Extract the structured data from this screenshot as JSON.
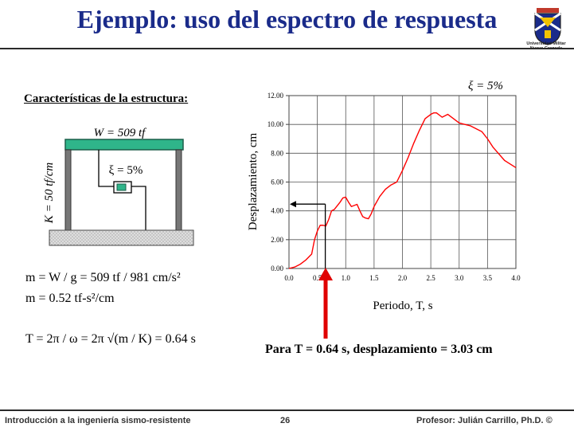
{
  "title": "Ejemplo: uso del espectro de respuesta",
  "logo": {
    "line1": "Universidad Militar",
    "line2": "Nueva Granada"
  },
  "structure": {
    "heading": "Características de la estructura:",
    "weight_label": "W = 509 tf",
    "damping_label": "ξ = 5%",
    "stiffness_label": "K = 50 tf/cm"
  },
  "equations": {
    "mass_a": "m = W / g = 509 tf / 981 cm/s²",
    "mass_b": "m = 0.52 tf-s²/cm",
    "period": "T = 2π / ω = 2π √(m / K) = 0.64 s"
  },
  "result": "Para T = 0.64 s, desplazamiento = 3.03 cm",
  "footer": {
    "left": "Introducción a la ingeniería sismo-resistente",
    "page": "26",
    "right": "Profesor: Julián Carrillo, Ph.D. ©"
  },
  "colors": {
    "title": "#1a2b8a",
    "curve": "#ff0000",
    "arrow": "#e00000",
    "beam": "#2fb58a"
  },
  "chart_data": {
    "type": "line",
    "annotation": "ξ = 5%",
    "xlabel": "Periodo, T, s",
    "ylabel": "Desplazamiento, cm",
    "xlim": [
      0,
      4
    ],
    "ylim": [
      0,
      12
    ],
    "x_ticks": [
      "0.0",
      "0.5",
      "1.0",
      "1.5",
      "2.0",
      "2.5",
      "3.0",
      "3.5",
      "4.0"
    ],
    "y_ticks": [
      "0.00",
      "2.00",
      "4.00",
      "6.00",
      "8.00",
      "10.00",
      "12.00"
    ],
    "grid": true,
    "series": [
      {
        "x": [
          0.0,
          0.1,
          0.2,
          0.3,
          0.35,
          0.4,
          0.45,
          0.5,
          0.55,
          0.6,
          0.65,
          0.7,
          0.75,
          0.8,
          0.9,
          0.95,
          1.0,
          1.05,
          1.1,
          1.2,
          1.25,
          1.3,
          1.35,
          1.4,
          1.45,
          1.5,
          1.6,
          1.7,
          1.8,
          1.9,
          2.0,
          2.1,
          2.2,
          2.3,
          2.4,
          2.5,
          2.55,
          2.6,
          2.7,
          2.8,
          2.9,
          3.0,
          3.1,
          3.2,
          3.4,
          3.5,
          3.6,
          3.8,
          4.0
        ],
        "y": [
          0.0,
          0.1,
          0.3,
          0.6,
          0.8,
          1.0,
          2.0,
          2.6,
          3.0,
          3.0,
          2.95,
          3.4,
          4.0,
          4.1,
          4.6,
          4.9,
          4.95,
          4.6,
          4.3,
          4.45,
          4.0,
          3.6,
          3.5,
          3.45,
          3.8,
          4.3,
          5.0,
          5.5,
          5.8,
          6.0,
          6.8,
          7.7,
          8.7,
          9.6,
          10.4,
          10.7,
          10.8,
          10.8,
          10.5,
          10.7,
          10.4,
          10.1,
          10.0,
          9.9,
          9.5,
          9.0,
          8.4,
          7.5,
          7.0
        ]
      }
    ],
    "marker_T": 0.64,
    "marker_disp": 3.03
  }
}
